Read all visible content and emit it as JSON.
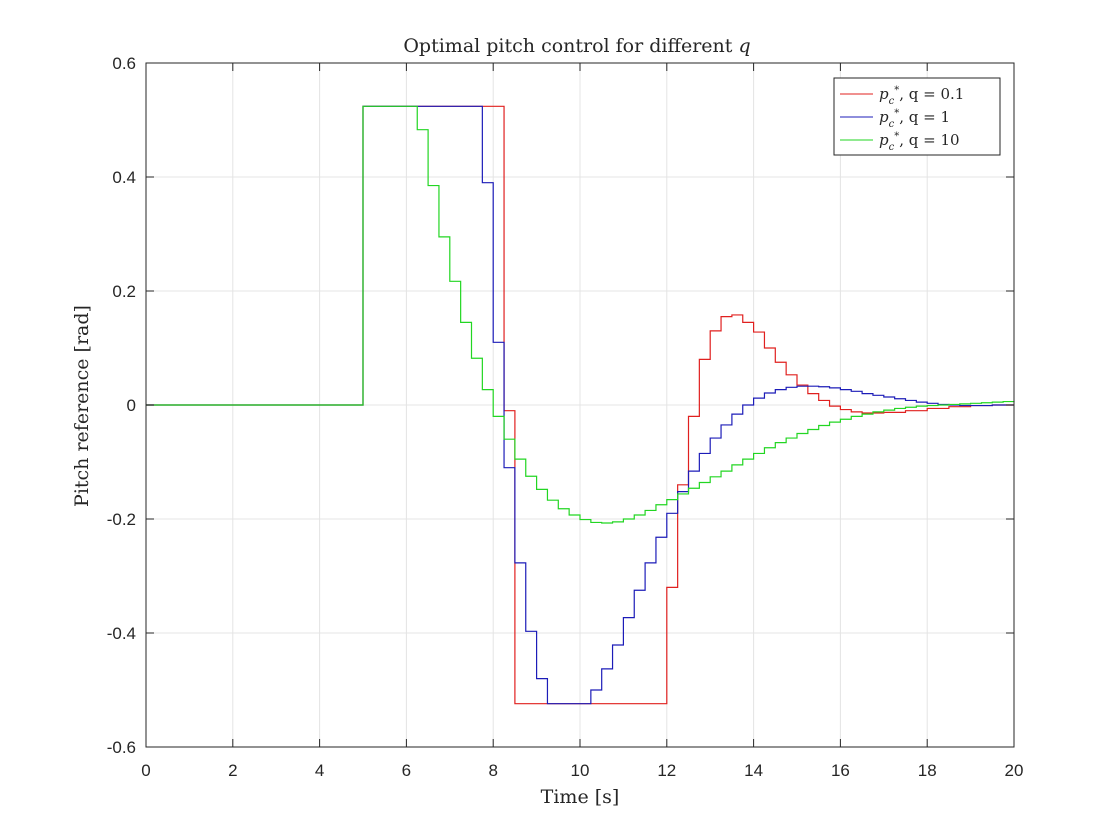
{
  "chart_data": {
    "type": "line",
    "step": true,
    "title": "Optimal pitch control for different q",
    "title_parts": {
      "text": "Optimal pitch control for different ",
      "var": "q"
    },
    "xlabel": "Time [s]",
    "ylabel": "Pitch reference [rad]",
    "xlim": [
      0,
      20
    ],
    "ylim": [
      -0.6,
      0.6
    ],
    "xticks": [
      0,
      2,
      4,
      6,
      8,
      10,
      12,
      14,
      16,
      18,
      20
    ],
    "yticks": [
      0.6,
      0.4,
      0.2,
      0,
      -0.2,
      -0.4,
      -0.6
    ],
    "xtick_labels": [
      "0",
      "2",
      "4",
      "6",
      "8",
      "10",
      "12",
      "14",
      "16",
      "18",
      "20"
    ],
    "ytick_labels": [
      "0.6",
      "0.4",
      "0.2",
      "0",
      "-0.2",
      "-0.4",
      "-0.6"
    ],
    "grid": true,
    "legend_location": "top-right",
    "series": [
      {
        "name": "p_c*, q = 0.1",
        "legend_q": "q = 0.1",
        "color": "#e0201f",
        "x": [
          0,
          5.0,
          8.25,
          8.5,
          12.0,
          12.25,
          12.5,
          12.75,
          13.0,
          13.25,
          13.5,
          13.75,
          14.0,
          14.25,
          14.5,
          14.75,
          15.0,
          15.25,
          15.5,
          15.75,
          16.0,
          16.25,
          16.5,
          17.0,
          17.5,
          18.0,
          18.5,
          19.0,
          19.5,
          20.0
        ],
        "y": [
          0,
          0.524,
          -0.01,
          -0.524,
          -0.32,
          -0.14,
          -0.02,
          0.08,
          0.13,
          0.155,
          0.158,
          0.145,
          0.128,
          0.1,
          0.075,
          0.053,
          0.035,
          0.02,
          0.008,
          -0.002,
          -0.008,
          -0.012,
          -0.014,
          -0.013,
          -0.01,
          -0.006,
          -0.003,
          -0.001,
          0,
          0
        ]
      },
      {
        "name": "p_c*, q = 1",
        "legend_q": "q = 1",
        "color": "#1c1cb8",
        "x": [
          0,
          5.0,
          7.75,
          8.0,
          8.25,
          8.5,
          8.75,
          9.0,
          9.25,
          10.25,
          10.5,
          10.75,
          11.0,
          11.25,
          11.5,
          11.75,
          12.0,
          12.25,
          12.5,
          12.75,
          13.0,
          13.25,
          13.5,
          13.75,
          14.0,
          14.25,
          14.5,
          14.75,
          15.0,
          15.25,
          15.5,
          15.75,
          16.0,
          16.25,
          16.5,
          16.75,
          17.0,
          17.25,
          17.5,
          17.75,
          18.0,
          18.25,
          18.5,
          18.75,
          19.0,
          19.5,
          20.0
        ],
        "y": [
          0,
          0.524,
          0.39,
          0.11,
          -0.11,
          -0.277,
          -0.397,
          -0.48,
          -0.524,
          -0.5,
          -0.463,
          -0.421,
          -0.373,
          -0.325,
          -0.277,
          -0.232,
          -0.19,
          -0.152,
          -0.116,
          -0.085,
          -0.058,
          -0.035,
          -0.016,
          0.0,
          0.012,
          0.021,
          0.027,
          0.031,
          0.033,
          0.033,
          0.032,
          0.03,
          0.027,
          0.024,
          0.02,
          0.017,
          0.014,
          0.011,
          0.008,
          0.005,
          0.003,
          0.001,
          0.0,
          -0.001,
          -0.001,
          0.0,
          0.0
        ]
      },
      {
        "name": "p_c*, q = 10",
        "legend_q": "q = 10",
        "color": "#22d622",
        "x": [
          0,
          5.0,
          6.25,
          6.5,
          6.75,
          7.0,
          7.25,
          7.5,
          7.75,
          8.0,
          8.25,
          8.5,
          8.75,
          9.0,
          9.25,
          9.5,
          9.75,
          10.0,
          10.25,
          10.5,
          10.75,
          11.0,
          11.25,
          11.5,
          11.75,
          12.0,
          12.25,
          12.5,
          12.75,
          13.0,
          13.25,
          13.5,
          13.75,
          14.0,
          14.25,
          14.5,
          14.75,
          15.0,
          15.25,
          15.5,
          15.75,
          16.0,
          16.25,
          16.5,
          16.75,
          17.0,
          17.25,
          17.5,
          17.75,
          18.0,
          18.25,
          18.5,
          18.75,
          19.0,
          19.25,
          19.5,
          19.75,
          20.0
        ],
        "y": [
          0,
          0.524,
          0.483,
          0.385,
          0.295,
          0.217,
          0.145,
          0.082,
          0.027,
          -0.02,
          -0.06,
          -0.095,
          -0.125,
          -0.148,
          -0.167,
          -0.182,
          -0.193,
          -0.201,
          -0.206,
          -0.207,
          -0.205,
          -0.2,
          -0.193,
          -0.185,
          -0.175,
          -0.166,
          -0.156,
          -0.146,
          -0.136,
          -0.126,
          -0.116,
          -0.105,
          -0.095,
          -0.085,
          -0.075,
          -0.066,
          -0.058,
          -0.05,
          -0.043,
          -0.036,
          -0.03,
          -0.025,
          -0.02,
          -0.016,
          -0.012,
          -0.009,
          -0.006,
          -0.004,
          -0.002,
          -0.001,
          0.0,
          0.001,
          0.002,
          0.003,
          0.004,
          0.005,
          0.006,
          0.007
        ]
      }
    ]
  }
}
